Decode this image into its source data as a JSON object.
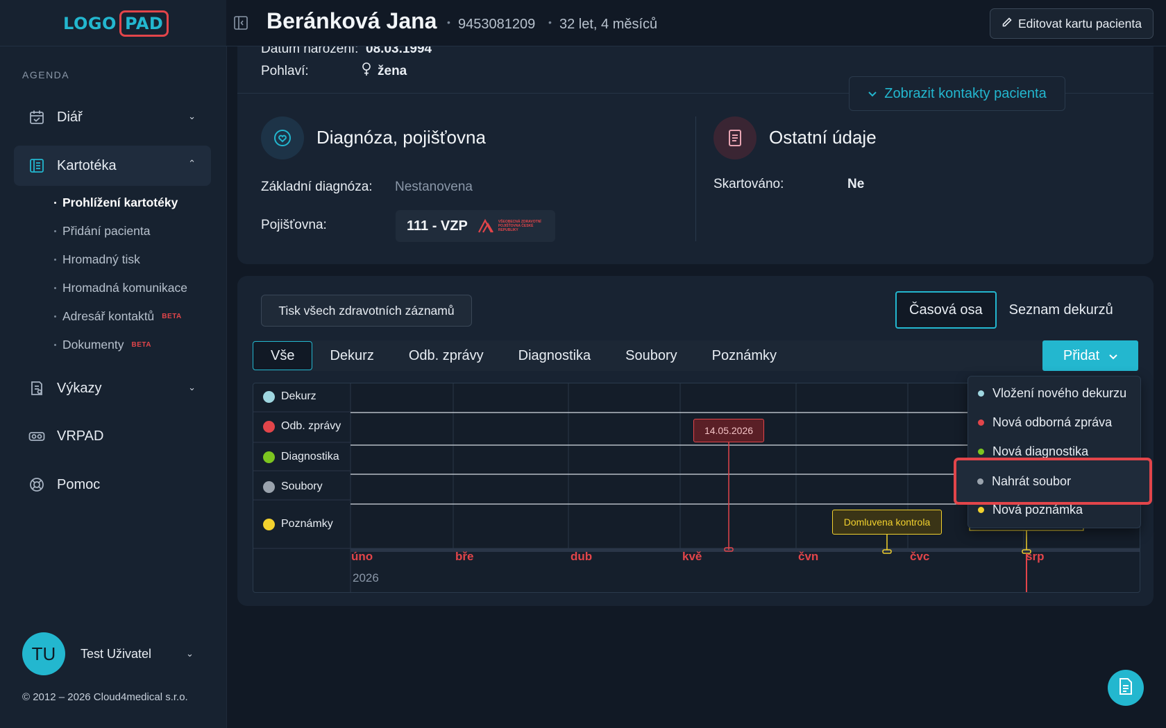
{
  "app": {
    "logo": {
      "part1": "LOGO",
      "part2": "PAD"
    },
    "copyright": "© 2012 – 2026 Cloud4medical s.r.o."
  },
  "sidebar": {
    "section_label": "AGENDA",
    "items": [
      {
        "label": "Diář",
        "icon": "calendar-icon"
      },
      {
        "label": "Kartotéka",
        "icon": "card-index-icon",
        "expanded": true
      },
      {
        "label": "Výkazy",
        "icon": "report-icon"
      },
      {
        "label": "VRPAD",
        "icon": "vr-headset-icon"
      },
      {
        "label": "Pomoc",
        "icon": "lifebuoy-icon"
      }
    ],
    "subitems": [
      {
        "label": "Prohlížení kartotéky",
        "active": true
      },
      {
        "label": "Přidání pacienta"
      },
      {
        "label": "Hromadný tisk"
      },
      {
        "label": "Hromadná komunikace"
      },
      {
        "label": "Adresář kontaktů",
        "badge": "BETA"
      },
      {
        "label": "Dokumenty",
        "badge": "BETA"
      }
    ],
    "user": {
      "initials": "TU",
      "name": "Test Uživatel"
    }
  },
  "header": {
    "patient_name": "Beránková Jana",
    "patient_id": "9453081209",
    "age": "32 let, 4 měsíců",
    "edit_label": "Editovat kartu pacienta"
  },
  "patient": {
    "birth_label": "Datum narození:",
    "birth_value": "08.03.1994",
    "sex_label": "Pohlaví:",
    "sex_value": "žena",
    "contacts_button": "Zobrazit kontakty pacienta"
  },
  "diagnosis": {
    "title": "Diagnóza, pojišťovna",
    "base_label": "Základní diagnóza:",
    "base_value": "Nestanovena",
    "insurance_label": "Pojišťovna:",
    "insurance_value": "111 - VZP",
    "insurance_logo_text": "VŠEOBECNÁ ZDRAVOTNÍ POJIŠŤOVNA ČESKÉ REPUBLIKY"
  },
  "other": {
    "title": "Ostatní údaje",
    "shredded_label": "Skartováno:",
    "shredded_value": "Ne"
  },
  "timeline": {
    "print_all": "Tisk všech zdravotních záznamů",
    "views": [
      "Časová osa",
      "Seznam dekurzů"
    ],
    "active_view": 0,
    "filters": [
      "Vše",
      "Dekurz",
      "Odb. zprávy",
      "Diagnostika",
      "Soubory",
      "Poznámky"
    ],
    "active_filter": 0,
    "add_button": "Přidat",
    "lanes": [
      {
        "label": "Dekurz",
        "color": "#9fd6e0"
      },
      {
        "label": "Odb. zprávy",
        "color": "#e2454a"
      },
      {
        "label": "Diagnostika",
        "color": "#7cc520"
      },
      {
        "label": "Soubory",
        "color": "#9aa3ad"
      },
      {
        "label": "Poznámky",
        "color": "#f2d12e"
      }
    ],
    "months": [
      "úno",
      "bře",
      "dub",
      "kvě",
      "čvn",
      "čvc",
      "srp"
    ],
    "year": "2026",
    "events": {
      "report_date": "14.05.2026",
      "note": "Domluvena kontrola"
    }
  },
  "add_menu": {
    "items": [
      {
        "label": "Vložení nového dekurzu",
        "color": "#9fd6e0"
      },
      {
        "label": "Nová odborná zpráva",
        "color": "#e2454a"
      },
      {
        "label": "Nová diagnostika",
        "color": "#7cc520"
      },
      {
        "label": "Nahrát soubor",
        "color": "#9aa3ad"
      },
      {
        "label": "Nová poznámka",
        "color": "#f2d12e"
      }
    ],
    "highlighted": "Nahrát soubor"
  },
  "colors": {
    "accent": "#23b7cf",
    "alert": "#e2454a",
    "background": "#111925",
    "panel": "#182332"
  }
}
